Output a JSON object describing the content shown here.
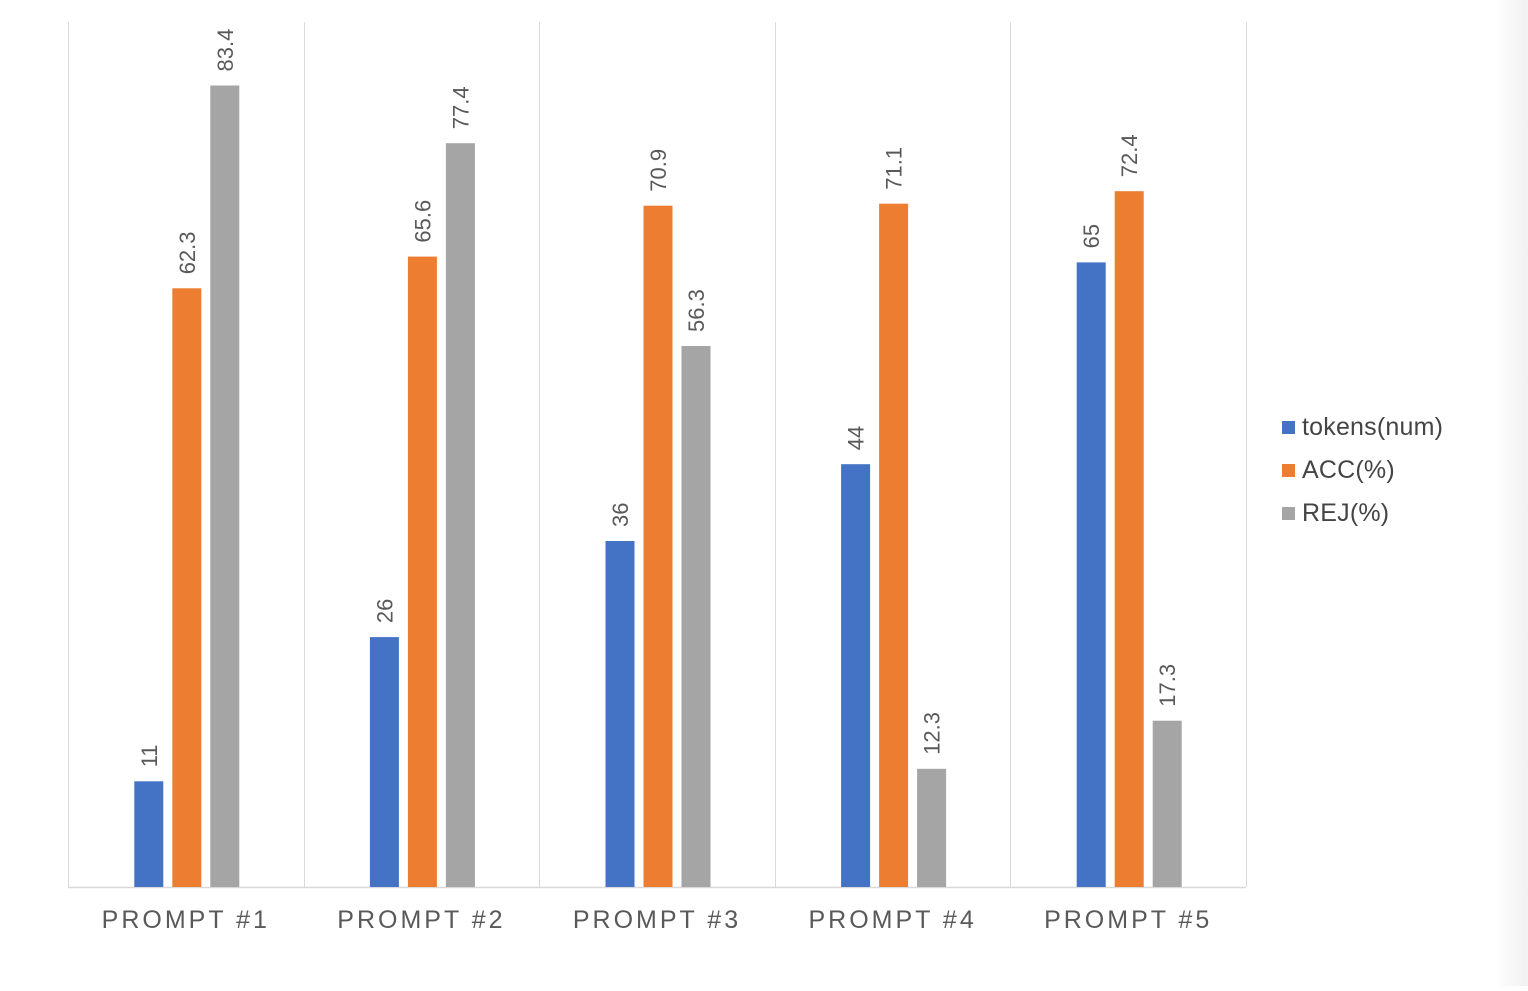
{
  "chart_data": {
    "type": "bar",
    "categories": [
      "PROMPT #1",
      "PROMPT #2",
      "PROMPT #3",
      "PROMPT #4",
      "PROMPT #5"
    ],
    "series": [
      {
        "name": "tokens(num)",
        "color": "#4472C4",
        "values": [
          11,
          26,
          36,
          44,
          65
        ]
      },
      {
        "name": "ACC(%)",
        "color": "#ED7D31",
        "values": [
          62.3,
          65.6,
          70.9,
          71.1,
          72.4
        ]
      },
      {
        "name": "REJ(%)",
        "color": "#A5A5A5",
        "values": [
          83.4,
          77.4,
          56.3,
          12.3,
          17.3
        ]
      }
    ],
    "value_labels": [
      [
        "11",
        "26",
        "36",
        "44",
        "65"
      ],
      [
        "62.3",
        "65.6",
        "70.9",
        "71.1",
        "72.4"
      ],
      [
        "83.4",
        "77.4",
        "56.3",
        "12.3",
        "17.3"
      ]
    ],
    "ylim": [
      0,
      90
    ],
    "grid": "vertical category separators",
    "legend_position": "right"
  }
}
